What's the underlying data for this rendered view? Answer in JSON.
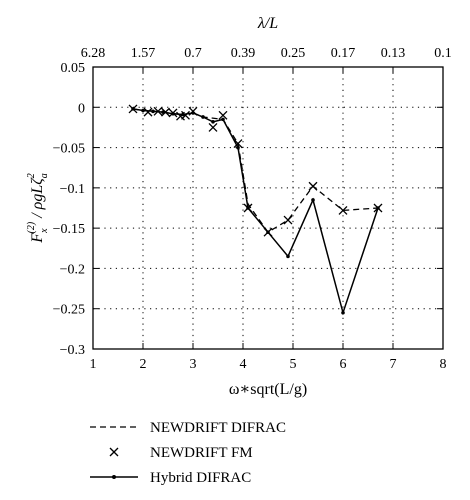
{
  "chart_data": {
    "type": "line",
    "xlabel": "ω∗sqrt(L/g)",
    "ylabel": "F_x^(2) / ρgLζ_a^2",
    "top_axis_label": "λ/L",
    "xlim": [
      1,
      8
    ],
    "ylim": [
      -0.3,
      0.05
    ],
    "grid": true,
    "x_ticks": [
      1,
      2,
      3,
      4,
      5,
      6,
      7,
      8
    ],
    "x_tick_labels": [
      "1",
      "2",
      "3",
      "4",
      "5",
      "6",
      "7",
      "8"
    ],
    "y_ticks": [
      0.05,
      0,
      -0.05,
      -0.1,
      -0.15,
      -0.2,
      -0.25,
      -0.3
    ],
    "y_tick_labels": [
      "0.05",
      "0",
      "−0.05",
      "−0.1",
      "−0.15",
      "−0.2",
      "−0.25",
      "−0.3"
    ],
    "top_ticks": [
      1,
      2,
      3,
      4,
      5,
      6,
      7,
      8
    ],
    "top_tick_labels": [
      "6.28",
      "1.57",
      "0.7",
      "0.39",
      "0.25",
      "0.17",
      "0.13",
      "0.1"
    ],
    "legend_placement": "below",
    "series": [
      {
        "name": "NEWDRIFT DIFRAC",
        "style": "dashed",
        "points": [
          [
            1.8,
            -0.002
          ],
          [
            2.0,
            -0.004
          ],
          [
            2.2,
            -0.005
          ],
          [
            2.4,
            -0.006
          ],
          [
            2.6,
            -0.008
          ],
          [
            2.8,
            -0.009
          ],
          [
            3.0,
            -0.007
          ],
          [
            3.2,
            -0.012
          ],
          [
            3.6,
            -0.015
          ],
          [
            3.9,
            -0.045
          ],
          [
            4.1,
            -0.12
          ],
          [
            4.5,
            -0.155
          ],
          [
            4.9,
            -0.14
          ],
          [
            5.4,
            -0.098
          ],
          [
            6.0,
            -0.128
          ],
          [
            6.7,
            -0.125
          ]
        ]
      },
      {
        "name": "NEWDRIFT FM",
        "style": "markers-x",
        "points": [
          [
            1.8,
            -0.002
          ],
          [
            2.1,
            -0.006
          ],
          [
            2.3,
            -0.005
          ],
          [
            2.45,
            -0.006
          ],
          [
            2.6,
            -0.007
          ],
          [
            2.75,
            -0.011
          ],
          [
            2.85,
            -0.01
          ],
          [
            3.0,
            -0.005
          ],
          [
            3.4,
            -0.025
          ],
          [
            3.6,
            -0.01
          ],
          [
            3.9,
            -0.045
          ],
          [
            4.1,
            -0.125
          ],
          [
            4.5,
            -0.155
          ],
          [
            4.9,
            -0.14
          ],
          [
            5.4,
            -0.098
          ],
          [
            6.0,
            -0.128
          ],
          [
            6.7,
            -0.125
          ]
        ]
      },
      {
        "name": "Hybrid DIFRAC",
        "style": "solid-dots",
        "points": [
          [
            1.8,
            -0.002
          ],
          [
            2.0,
            -0.004
          ],
          [
            2.2,
            -0.005
          ],
          [
            2.4,
            -0.006
          ],
          [
            2.6,
            -0.008
          ],
          [
            2.8,
            -0.009
          ],
          [
            3.0,
            -0.007
          ],
          [
            3.2,
            -0.012
          ],
          [
            3.4,
            -0.018
          ],
          [
            3.6,
            -0.015
          ],
          [
            3.9,
            -0.05
          ],
          [
            4.1,
            -0.125
          ],
          [
            4.5,
            -0.155
          ],
          [
            4.9,
            -0.185
          ],
          [
            5.4,
            -0.115
          ],
          [
            6.0,
            -0.255
          ],
          [
            6.7,
            -0.125
          ]
        ]
      }
    ]
  }
}
